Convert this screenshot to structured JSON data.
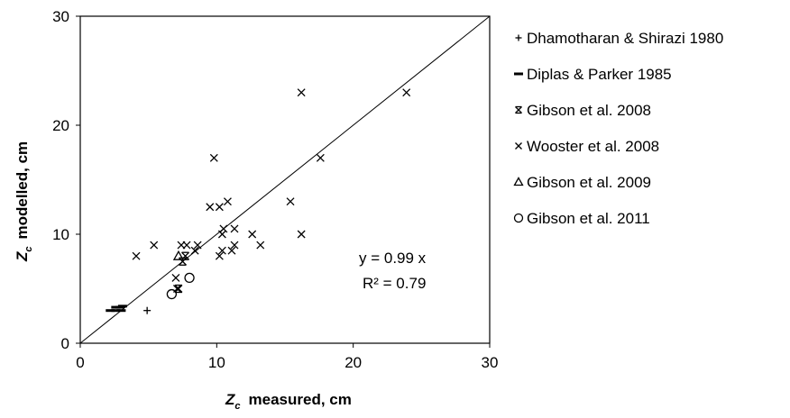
{
  "chart_data": {
    "type": "scatter",
    "xlabel": {
      "var": "Z",
      "sub": "c",
      "rest": "measured, cm"
    },
    "ylabel": {
      "var": "Z",
      "sub": "c",
      "rest": "modelled, cm"
    },
    "xlim": [
      0,
      30
    ],
    "ylim": [
      0,
      30
    ],
    "xticks": [
      "0",
      "10",
      "20",
      "30"
    ],
    "yticks": [
      "0",
      "10",
      "20",
      "30"
    ],
    "grid": false,
    "legend_position": "right",
    "reference_line": {
      "slope": 1,
      "from": [
        0,
        0
      ],
      "to": [
        30,
        30
      ]
    },
    "annotations": [
      "y = 0.99 x",
      "R² = 0.79"
    ],
    "series": [
      {
        "name": "Dhamotharan & Shirazi 1980",
        "marker": "plus",
        "points": [
          [
            4.9,
            3.0
          ]
        ]
      },
      {
        "name": "Diplas & Parker 1985",
        "marker": "dash",
        "points": [
          [
            2.2,
            3.0
          ],
          [
            2.6,
            3.0
          ],
          [
            3.0,
            3.0
          ],
          [
            2.6,
            3.3
          ],
          [
            2.9,
            3.3
          ],
          [
            3.1,
            3.4
          ]
        ]
      },
      {
        "name": "Gibson et al. 2008",
        "marker": "asterisk",
        "points": [
          [
            7.2,
            5.0
          ],
          [
            7.5,
            7.5
          ],
          [
            7.7,
            8.0
          ]
        ]
      },
      {
        "name": "Wooster et al. 2008",
        "marker": "x",
        "points": [
          [
            4.1,
            8.0
          ],
          [
            5.4,
            9.0
          ],
          [
            7.0,
            6.0
          ],
          [
            7.1,
            5.0
          ],
          [
            7.4,
            9.0
          ],
          [
            7.8,
            9.0
          ],
          [
            8.4,
            8.5
          ],
          [
            8.6,
            9.0
          ],
          [
            9.5,
            12.5
          ],
          [
            9.8,
            17.0
          ],
          [
            10.2,
            8.0
          ],
          [
            10.2,
            12.5
          ],
          [
            10.4,
            8.5
          ],
          [
            10.4,
            10.0
          ],
          [
            10.5,
            10.5
          ],
          [
            10.8,
            13.0
          ],
          [
            11.1,
            8.5
          ],
          [
            11.3,
            9.0
          ],
          [
            11.3,
            10.5
          ],
          [
            12.6,
            10.0
          ],
          [
            13.2,
            9.0
          ],
          [
            15.4,
            13.0
          ],
          [
            16.2,
            10.0
          ],
          [
            16.2,
            23.0
          ],
          [
            17.6,
            17.0
          ],
          [
            23.9,
            23.0
          ]
        ]
      },
      {
        "name": "Gibson et al. 2009",
        "marker": "triangle",
        "points": [
          [
            7.2,
            8.0
          ]
        ]
      },
      {
        "name": "Gibson et al. 2011",
        "marker": "circle",
        "points": [
          [
            6.7,
            4.5
          ],
          [
            8.0,
            6.0
          ]
        ]
      }
    ]
  }
}
